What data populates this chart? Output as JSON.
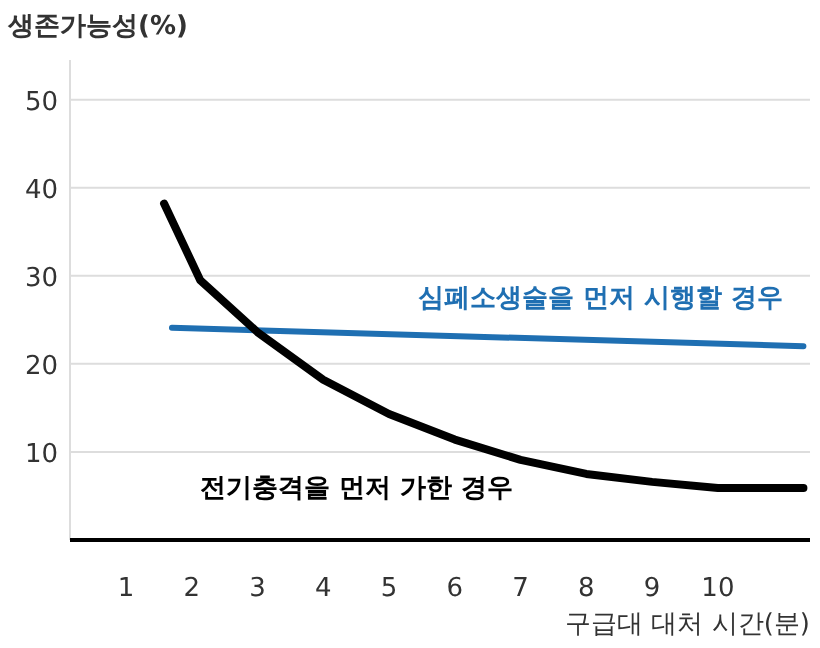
{
  "chart_data": {
    "type": "line",
    "ylabel": "생존가능성(%)",
    "xlabel": "구급대 대처 시간(분)",
    "xlim": [
      0.15,
      11.4
    ],
    "ylim": [
      0,
      54.5
    ],
    "xticks": [
      1,
      2,
      3,
      4,
      5,
      6,
      7,
      8,
      9,
      10
    ],
    "yticks": [
      10,
      20,
      30,
      40,
      50
    ],
    "grid": "y",
    "marker": "none",
    "line_style": "solid",
    "series": [
      {
        "name": "심폐소생술을 먼저 시행할 경우",
        "color": "#1f6fb2",
        "x": [
          1.7,
          11.3
        ],
        "values": [
          24.1,
          22.0
        ]
      },
      {
        "name": "전기충격을 먼저 가한 경우",
        "color": "#000000",
        "x": [
          1.58,
          2.13,
          3,
          4,
          5,
          6,
          7,
          8,
          9,
          10,
          11.3
        ],
        "values": [
          38.2,
          29.5,
          23.6,
          18.2,
          14.3,
          11.4,
          9.1,
          7.5,
          6.6,
          5.9,
          5.9
        ]
      }
    ]
  }
}
